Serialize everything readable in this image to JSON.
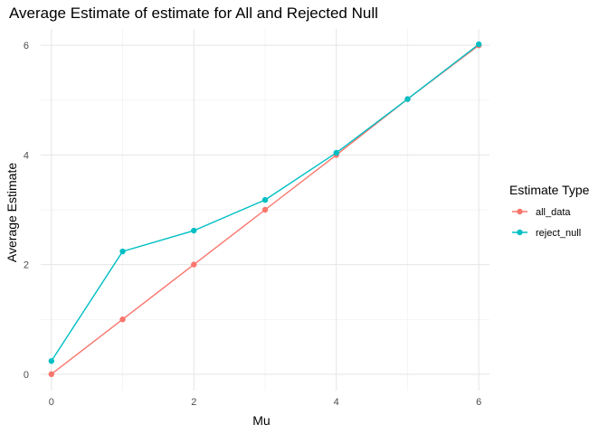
{
  "chart_data": {
    "type": "line",
    "title": "Average Estimate of estimate for All and Rejected Null",
    "xlabel": "Mu",
    "ylabel": "Average Estimate",
    "x": [
      0,
      1,
      2,
      3,
      4,
      5,
      6
    ],
    "xlim": [
      -0.15,
      6.15
    ],
    "ylim": [
      -0.3,
      6.3
    ],
    "xticks": [
      0,
      2,
      4,
      6
    ],
    "yticks": [
      0,
      2,
      4,
      6
    ],
    "grid": true,
    "legend": {
      "title": "Estimate Type",
      "placement": "right"
    },
    "series": [
      {
        "name": "all_data",
        "color": "#F8766D",
        "values": [
          0.0,
          1.0,
          2.0,
          3.0,
          4.0,
          5.02,
          6.0
        ]
      },
      {
        "name": "reject_null",
        "color": "#00BFC4",
        "values": [
          0.24,
          2.24,
          2.62,
          3.18,
          4.04,
          5.02,
          6.02
        ]
      }
    ]
  }
}
